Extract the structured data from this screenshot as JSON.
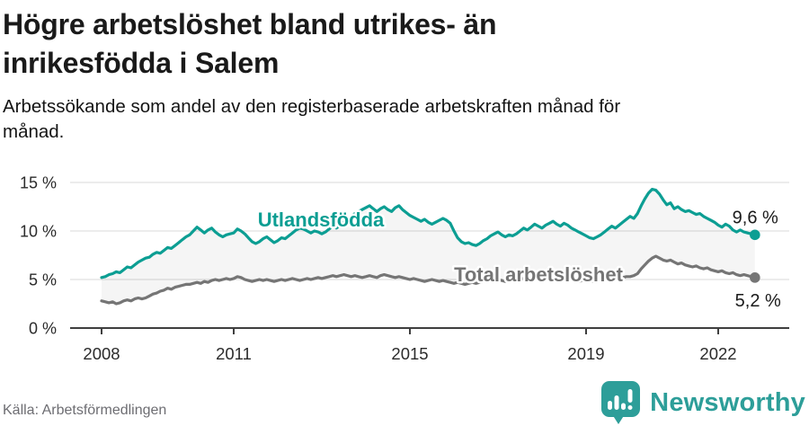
{
  "header": {
    "title_lines": [
      "Högre arbetslöshet bland utrikes- än",
      "inrikesfödda i Salem"
    ],
    "subtitle_lines": [
      "Arbetssökande som andel av den registerbaserade arbetskraften månad för",
      "månad."
    ]
  },
  "footer": {
    "source": "Källa: Arbetsförmedlingen",
    "brand": "Newsworthy",
    "brand_color": "#2d9e99"
  },
  "chart_data": {
    "type": "line",
    "x_start_year": 2008,
    "x_step": "month",
    "x_ticks": [
      2008,
      2011,
      2015,
      2019,
      2022
    ],
    "y_ticks": [
      0,
      5,
      10,
      15
    ],
    "y_tick_suffix": " %",
    "ylim": [
      0,
      16.5
    ],
    "grid": true,
    "fill_between_series": true,
    "fill_color": "rgba(0,0,0,0.04)",
    "axis_color": "#3f3f3f",
    "grid_color": "#d9d9d9",
    "tick_label_color": "#2b2b2b",
    "series": [
      {
        "name": "Utlandsfödda",
        "label": "Utlandsfödda",
        "color": "#0c9e93",
        "end_label": "9,6 %",
        "end_value": 9.6,
        "values": [
          5.2,
          5.3,
          5.5,
          5.6,
          5.8,
          5.7,
          6.0,
          6.3,
          6.2,
          6.5,
          6.8,
          7.0,
          7.2,
          7.3,
          7.6,
          7.8,
          7.7,
          8.0,
          8.3,
          8.2,
          8.5,
          8.8,
          9.1,
          9.4,
          9.6,
          10.0,
          10.4,
          10.1,
          9.8,
          10.1,
          10.3,
          9.9,
          9.6,
          9.4,
          9.6,
          9.7,
          9.8,
          10.2,
          10.0,
          9.7,
          9.3,
          8.9,
          8.7,
          8.9,
          9.2,
          9.4,
          9.1,
          8.8,
          9.0,
          9.3,
          9.2,
          9.5,
          9.8,
          10.1,
          10.3,
          10.2,
          10.0,
          9.8,
          10.0,
          9.9,
          9.7,
          9.9,
          10.2,
          10.5,
          10.3,
          10.6,
          10.9,
          11.2,
          11.5,
          11.8,
          12.0,
          12.2,
          12.4,
          12.6,
          12.3,
          12.0,
          12.3,
          12.5,
          12.2,
          12.0,
          12.4,
          12.6,
          12.2,
          11.9,
          11.6,
          11.4,
          11.2,
          11.0,
          11.2,
          10.9,
          10.7,
          10.9,
          11.1,
          11.3,
          11.1,
          10.8,
          10.0,
          9.3,
          8.9,
          8.7,
          8.8,
          8.6,
          8.5,
          8.7,
          9.0,
          9.2,
          9.5,
          9.7,
          9.9,
          9.6,
          9.4,
          9.6,
          9.5,
          9.7,
          10.0,
          10.3,
          10.1,
          10.4,
          10.7,
          10.5,
          10.3,
          10.6,
          10.8,
          11.0,
          10.7,
          10.5,
          10.8,
          10.6,
          10.3,
          10.1,
          9.9,
          9.7,
          9.5,
          9.3,
          9.2,
          9.4,
          9.6,
          9.9,
          10.2,
          10.5,
          10.3,
          10.6,
          10.9,
          11.2,
          11.5,
          11.3,
          11.8,
          12.6,
          13.3,
          13.9,
          14.3,
          14.2,
          13.8,
          13.2,
          12.7,
          12.9,
          12.3,
          12.5,
          12.2,
          12.0,
          12.1,
          11.9,
          11.7,
          11.8,
          11.5,
          11.3,
          11.1,
          10.9,
          10.6,
          10.4,
          10.7,
          10.5,
          10.1,
          9.9,
          10.1,
          9.9,
          9.8,
          9.7,
          9.6
        ]
      },
      {
        "name": "Total arbetslöshet",
        "label": "Total arbetslöshet",
        "color": "#757575",
        "end_label": "5,2 %",
        "end_value": 5.2,
        "values": [
          2.8,
          2.7,
          2.6,
          2.7,
          2.5,
          2.6,
          2.8,
          2.9,
          2.8,
          3.0,
          3.1,
          3.0,
          3.1,
          3.3,
          3.5,
          3.6,
          3.8,
          3.9,
          4.1,
          4.0,
          4.2,
          4.3,
          4.4,
          4.5,
          4.5,
          4.6,
          4.7,
          4.6,
          4.8,
          4.7,
          4.9,
          5.0,
          4.9,
          5.0,
          5.1,
          5.0,
          5.1,
          5.3,
          5.2,
          5.0,
          4.9,
          4.8,
          4.9,
          5.0,
          4.9,
          5.0,
          4.9,
          4.8,
          4.9,
          5.0,
          4.9,
          5.0,
          5.1,
          5.0,
          4.9,
          5.0,
          5.1,
          5.0,
          5.1,
          5.2,
          5.1,
          5.2,
          5.3,
          5.4,
          5.3,
          5.4,
          5.5,
          5.4,
          5.3,
          5.4,
          5.3,
          5.2,
          5.3,
          5.4,
          5.3,
          5.2,
          5.4,
          5.5,
          5.4,
          5.3,
          5.2,
          5.3,
          5.2,
          5.1,
          5.0,
          5.1,
          5.0,
          4.9,
          4.8,
          4.9,
          5.0,
          4.9,
          4.8,
          4.9,
          4.8,
          4.7,
          4.6,
          4.7,
          4.6,
          4.5,
          4.6,
          4.7,
          4.6,
          4.7,
          4.8,
          4.9,
          5.0,
          4.9,
          5.0,
          4.9,
          4.8,
          4.9,
          5.0,
          5.1,
          5.0,
          5.1,
          5.2,
          5.1,
          5.0,
          5.1,
          5.2,
          5.1,
          5.0,
          5.1,
          5.2,
          5.1,
          5.0,
          4.9,
          5.0,
          4.9,
          4.8,
          4.9,
          4.8,
          4.9,
          4.8,
          4.9,
          5.0,
          5.1,
          5.0,
          5.1,
          5.2,
          5.1,
          5.2,
          5.3,
          5.3,
          5.4,
          5.6,
          6.1,
          6.5,
          6.9,
          7.2,
          7.4,
          7.2,
          7.0,
          6.9,
          7.0,
          6.8,
          6.6,
          6.7,
          6.5,
          6.4,
          6.3,
          6.4,
          6.2,
          6.1,
          6.2,
          6.0,
          5.9,
          5.8,
          5.9,
          5.7,
          5.6,
          5.7,
          5.5,
          5.4,
          5.5,
          5.4,
          5.3,
          5.2
        ]
      }
    ]
  }
}
